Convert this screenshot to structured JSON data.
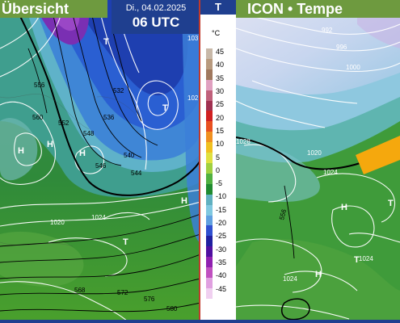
{
  "left_panel": {
    "title": "Übersicht",
    "pressure_centers": [
      {
        "label": "T"
      },
      {
        "label": "T"
      },
      {
        "label": "H"
      },
      {
        "label": "H"
      },
      {
        "label": "H"
      },
      {
        "label": "H"
      },
      {
        "label": "T"
      }
    ],
    "geopotential_labels": [
      "556",
      "560",
      "552",
      "548",
      "546",
      "540",
      "544",
      "536",
      "532",
      "568",
      "572",
      "576",
      "580"
    ],
    "isobar_labels": [
      "1020",
      "1024",
      "102",
      "103"
    ]
  },
  "header": {
    "date": "Di., 04.02.2025",
    "time": "06 UTC"
  },
  "legend": {
    "head": "T",
    "unit": "°C",
    "ticks": [
      "45",
      "40",
      "35",
      "30",
      "25",
      "20",
      "15",
      "10",
      "5",
      "0",
      "-5",
      "-10",
      "-15",
      "-20",
      "-25",
      "-30",
      "-35",
      "-40",
      "-45"
    ],
    "colors": [
      "#c8b8a8",
      "#b89a7e",
      "#a0785e",
      "#e0a0c0",
      "#c0607a",
      "#a03050",
      "#d02020",
      "#e85020",
      "#f09020",
      "#f0c020",
      "#e0e040",
      "#a0d040",
      "#50b040",
      "#208a30",
      "#60b0c0",
      "#80c8e0",
      "#60a0e0",
      "#3050d0",
      "#2020a0",
      "#5010a0",
      "#9020b0",
      "#c050c0",
      "#e0a0e0",
      "#f0d0f0"
    ]
  },
  "right_panel": {
    "title": "ICON • Tempe",
    "pressure_centers": [
      {
        "label": "H"
      },
      {
        "label": "H"
      },
      {
        "label": "T"
      },
      {
        "label": "T"
      }
    ],
    "isobar_labels": [
      "992",
      "996",
      "1000",
      "1028",
      "1020",
      "1024",
      "1024",
      "1024"
    ],
    "geopotential_labels": [
      "556"
    ]
  }
}
